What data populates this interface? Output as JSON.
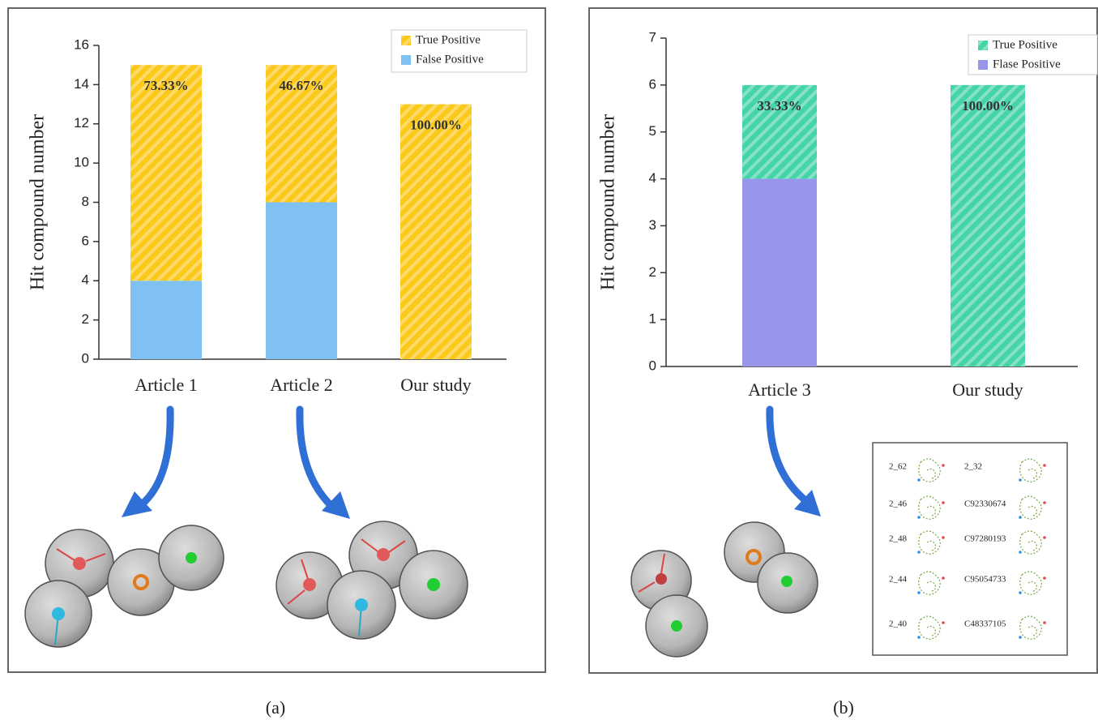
{
  "chart_data": [
    {
      "type": "stacked_bar",
      "y_label": "Hit compound number",
      "categories": [
        "Article 1",
        "Article 2",
        "Our study"
      ],
      "series": [
        {
          "name": "True Positive",
          "color": "#fcc81a",
          "hatch": true,
          "values": [
            11,
            7,
            13
          ]
        },
        {
          "name": "False Positive",
          "color": "#7fc1f3",
          "hatch": false,
          "values": [
            4,
            8,
            0
          ]
        }
      ],
      "annotations": [
        "73.33%",
        "46.67%",
        "100.00%"
      ],
      "ylim": [
        0,
        16
      ],
      "yticks": [
        0,
        2,
        4,
        6,
        8,
        10,
        12,
        14,
        16
      ],
      "legend": "upper right"
    },
    {
      "type": "stacked_bar",
      "y_label": "Hit compound number",
      "categories": [
        "Article 3",
        "Our study"
      ],
      "series": [
        {
          "name": "True Positive",
          "color": "#45d3a8",
          "hatch": true,
          "values": [
            2,
            6
          ]
        },
        {
          "name": "Flase Positive",
          "color": "#9896ea",
          "hatch": false,
          "values": [
            4,
            0
          ]
        }
      ],
      "annotations": [
        "33.33%",
        "100.00%"
      ],
      "ylim": [
        0,
        7
      ],
      "yticks": [
        0,
        1,
        2,
        3,
        4,
        5,
        6,
        7
      ],
      "legend": "upper right"
    }
  ],
  "captions": [
    "(a)",
    "(b)"
  ],
  "compound_table": [
    [
      "2_62",
      "2_32"
    ],
    [
      "2_46",
      "C92330674"
    ],
    [
      "2_48",
      "C97280193"
    ],
    [
      "2_44",
      "C95054733"
    ],
    [
      "2_40",
      "C48337105"
    ]
  ]
}
